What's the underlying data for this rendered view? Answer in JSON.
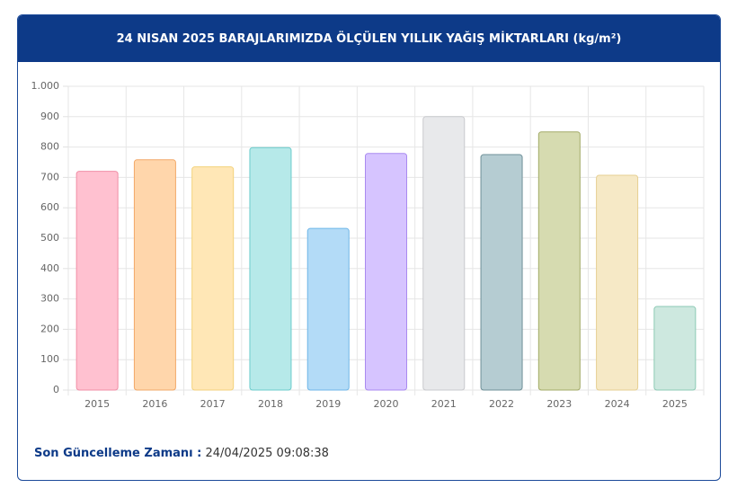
{
  "chart_data": {
    "type": "bar",
    "title": "24 NISAN 2025 BARAJLARIMIZDA ÖLÇÜLEN YILLIK YAĞIŞ MİKTARLARI (kg/m²)",
    "categories": [
      "2015",
      "2016",
      "2017",
      "2018",
      "2019",
      "2020",
      "2021",
      "2022",
      "2023",
      "2024",
      "2025"
    ],
    "values": [
      720,
      758,
      735,
      798,
      532,
      779,
      900,
      775,
      850,
      707,
      275
    ],
    "colors": [
      "#ffc1d0",
      "#ffd6ab",
      "#ffe7b6",
      "#b6e9e9",
      "#b3dbf7",
      "#d6c4ff",
      "#e8e9eb",
      "#b5ccd2",
      "#d6dbb0",
      "#f6e9c6",
      "#cde8df"
    ],
    "border_colors": [
      "#f08ea6",
      "#f2a868",
      "#f3d27c",
      "#6ccccc",
      "#6fb6e8",
      "#a98af0",
      "#c8c9cd",
      "#6f9098",
      "#a3ab68",
      "#e6cf92",
      "#8ccab4"
    ],
    "ylim": [
      0,
      1000
    ],
    "yticks": [
      0,
      100,
      200,
      300,
      400,
      500,
      600,
      700,
      800,
      900,
      {
        "value": 1000,
        "label": "1.000"
      }
    ],
    "grid": true
  },
  "footer": {
    "label": "Son Güncelleme Zamanı :",
    "timestamp": "24/04/2025 09:08:38"
  }
}
